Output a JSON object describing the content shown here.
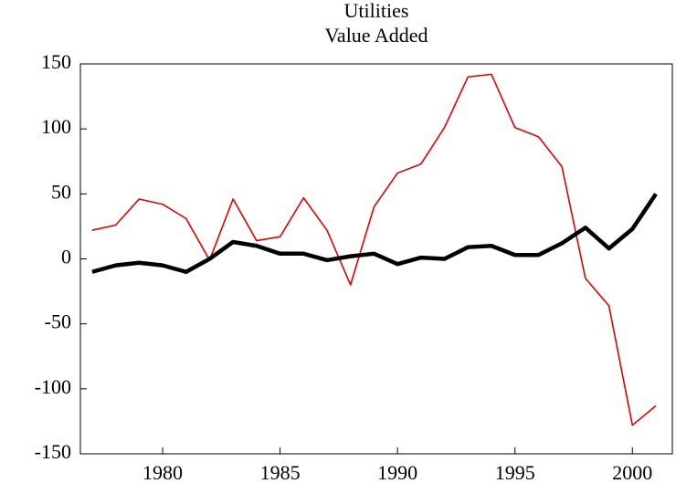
{
  "chart_data": {
    "type": "line",
    "title": "Utilities",
    "subtitle": "Value Added",
    "x": [
      1977,
      1978,
      1979,
      1980,
      1981,
      1982,
      1983,
      1984,
      1985,
      1986,
      1987,
      1988,
      1989,
      1990,
      1991,
      1992,
      1993,
      1994,
      1995,
      1996,
      1997,
      1998,
      1999,
      2000,
      2001
    ],
    "series": [
      {
        "color": "#e00000",
        "width": 1.6,
        "values": [
          22,
          26,
          46,
          42,
          31,
          -1,
          46,
          14,
          17,
          47,
          22,
          -20,
          40,
          66,
          73,
          101,
          140,
          142,
          101,
          94,
          71,
          -15,
          -36,
          -128,
          -113
        ]
      },
      {
        "color": "#000000",
        "width": 4.5,
        "values": [
          -10,
          -5,
          -3,
          -5,
          -10,
          0,
          13,
          10,
          4,
          4,
          -1,
          2,
          4,
          -4,
          1,
          0,
          9,
          10,
          3,
          3,
          12,
          24,
          8,
          23,
          50
        ]
      }
    ],
    "xlim": [
      1976.5,
      2001.7
    ],
    "xticks": [
      1980,
      1985,
      1990,
      1995,
      2000
    ],
    "ylim": [
      -150,
      150
    ],
    "yticks": [
      -150,
      -100,
      -50,
      0,
      50,
      100,
      150
    ]
  }
}
